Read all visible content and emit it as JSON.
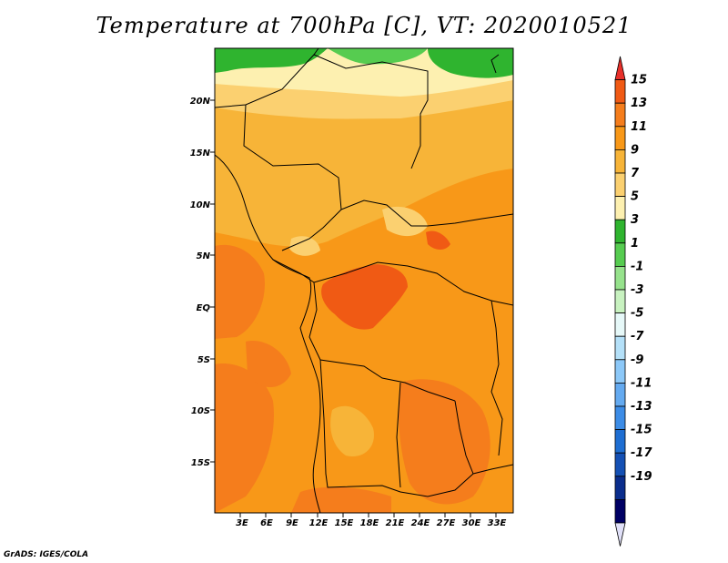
{
  "title": "Temperature at 700hPa [C], VT: 2020010521",
  "credit": "GrADS: IGES/COLA",
  "map": {
    "lon_ticks": [
      "3E",
      "6E",
      "9E",
      "12E",
      "15E",
      "18E",
      "21E",
      "24E",
      "27E",
      "30E",
      "33E"
    ],
    "lat_ticks": [
      "20N",
      "15N",
      "10N",
      "5N",
      "EQ",
      "5S",
      "10S",
      "15S"
    ]
  },
  "colorbar": {
    "labels": [
      "15",
      "13",
      "11",
      "9",
      "7",
      "5",
      "3",
      "1",
      "-1",
      "-3",
      "-5",
      "-7",
      "-9",
      "-11",
      "-13",
      "-15",
      "-17",
      "-19"
    ],
    "colors": [
      "#e8302a",
      "#f05a14",
      "#f57d1c",
      "#f89818",
      "#f7b438",
      "#fbd070",
      "#fdf0b0",
      "#2fb42f",
      "#56cc50",
      "#96e28c",
      "#c8f2c0",
      "#e6f8f8",
      "#b4e0f8",
      "#8cc8f8",
      "#64aaf0",
      "#3c8ce6",
      "#1e6ed2",
      "#1450b4",
      "#0a2d8c",
      "#000064",
      "#e0e0f8"
    ]
  }
}
